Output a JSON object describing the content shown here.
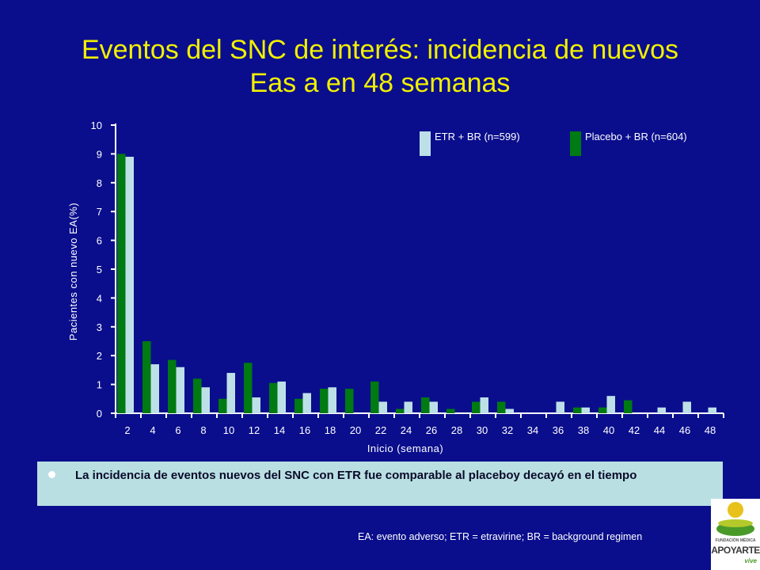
{
  "title": {
    "line1": "Eventos del SNC de interés: incidencia de nuevos",
    "line2": "Eas a en 48 semanas"
  },
  "chart_data": {
    "type": "bar",
    "xlabel": "Inicio (semana)",
    "ylabel": "Pacientes con nuevo EA(%)",
    "ylim": [
      0,
      10
    ],
    "yticks": [
      0,
      1,
      2,
      3,
      4,
      5,
      6,
      7,
      8,
      9,
      10
    ],
    "categories": [
      "2",
      "4",
      "6",
      "8",
      "10",
      "12",
      "14",
      "16",
      "18",
      "20",
      "22",
      "24",
      "26",
      "28",
      "30",
      "32",
      "34",
      "36",
      "38",
      "40",
      "42",
      "44",
      "46",
      "48"
    ],
    "legend_placement": "top-right",
    "series": [
      {
        "name": "Placebo + BR (n=604)",
        "color": "#007a12",
        "values": [
          9.0,
          2.5,
          1.85,
          1.2,
          0.5,
          1.75,
          1.05,
          0.5,
          0.85,
          0.85,
          1.1,
          0.15,
          0.55,
          0.15,
          0.4,
          0.4,
          0,
          0,
          0.2,
          0.2,
          0.45,
          0,
          0,
          0
        ]
      },
      {
        "name": "ETR + BR (n=599)",
        "color": "#bde0e8",
        "values": [
          8.9,
          1.7,
          1.6,
          0.9,
          1.4,
          0.55,
          1.1,
          0.7,
          0.9,
          0,
          0.4,
          0.4,
          0.4,
          0,
          0.55,
          0.15,
          0,
          0.4,
          0.2,
          0.6,
          0,
          0.2,
          0.4,
          0.2
        ]
      }
    ],
    "legend_order": [
      1,
      0
    ]
  },
  "note": {
    "text": "La incidencia de eventos nuevos del SNC con ETR fue comparable al placeboy decayó en el tiempo"
  },
  "footnote": "EA: evento adverso; ETR = etravirine; BR = background regimen",
  "logo": {
    "line1": "FUNDACIÓN MÉDICA",
    "line2": "APOYARTE",
    "line3": "vive"
  }
}
